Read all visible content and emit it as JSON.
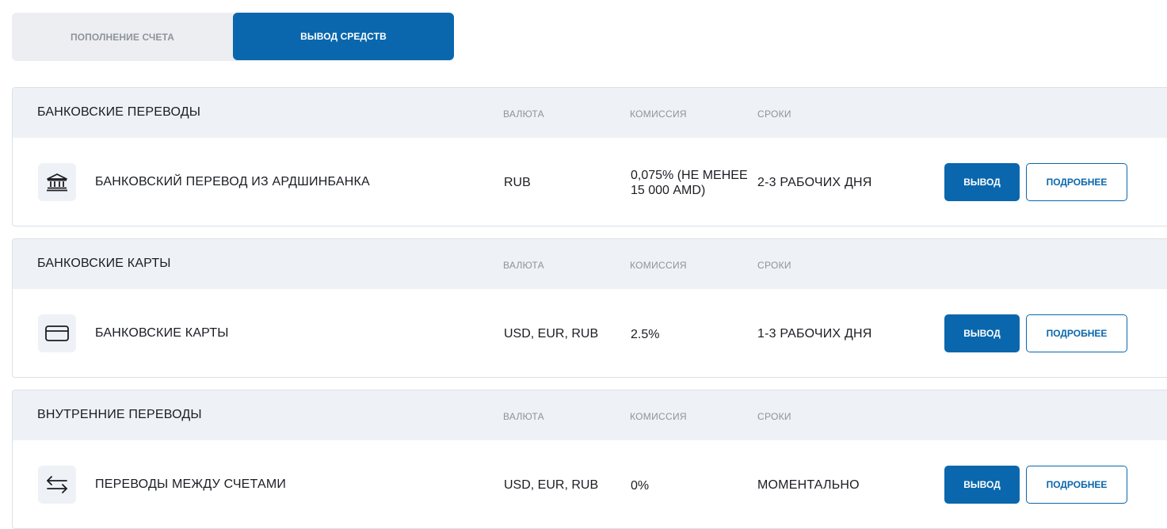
{
  "tabs": [
    {
      "label": "ПОПОЛНЕНИЕ СЧЕТА",
      "active": false
    },
    {
      "label": "ВЫВОД СРЕДСТВ",
      "active": true
    }
  ],
  "column_labels": {
    "currency": "ВАЛЮТА",
    "commission": "КОМИССИЯ",
    "terms": "СРОКИ"
  },
  "sections": [
    {
      "title": "БАНКОВСКИЕ ПЕРЕВОДЫ",
      "row": {
        "icon": "bank-icon",
        "name": "БАНКОВСКИЙ ПЕРЕВОД ИЗ АРДШИНБАНКА",
        "currency": "RUB",
        "commission": "0,075% (НЕ МЕНЕЕ 15 000 AMD)",
        "terms": "2-3 РАБОЧИХ ДНЯ",
        "primary_button": "ВЫВОД",
        "secondary_button": "ПОДРОБНЕЕ"
      }
    },
    {
      "title": "БАНКОВСКИЕ КАРТЫ",
      "row": {
        "icon": "credit-card-icon",
        "name": "БАНКОВСКИЕ КАРТЫ",
        "currency": "USD, EUR, RUB",
        "commission": "2.5%",
        "terms": "1-3 РАБОЧИХ ДНЯ",
        "primary_button": "ВЫВОД",
        "secondary_button": "ПОДРОБНЕЕ"
      }
    },
    {
      "title": "ВНУТРЕННИЕ ПЕРЕВОДЫ",
      "row": {
        "icon": "transfer-arrows-icon",
        "name": "ПЕРЕВОДЫ МЕЖДУ СЧЕТАМИ",
        "currency": "USD, EUR, RUB",
        "commission": "0%",
        "terms": "МОМЕНТАЛЬНО",
        "primary_button": "ВЫВОД",
        "secondary_button": "ПОДРОБНЕЕ"
      }
    }
  ],
  "colors": {
    "accent": "#0a67ad",
    "header_bg": "#eef1f6",
    "muted_text": "#8e949d"
  }
}
